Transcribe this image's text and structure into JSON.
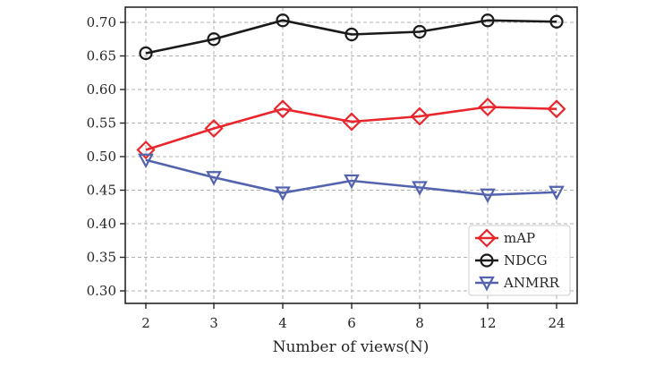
{
  "chart_data": {
    "type": "line",
    "title": "",
    "xlabel": "Number of views(N)",
    "ylabel": "",
    "categories": [
      "2",
      "3",
      "4",
      "6",
      "8",
      "12",
      "24"
    ],
    "ylim": [
      0.28,
      0.724
    ],
    "yticks": [
      "0.30",
      "0.35",
      "0.40",
      "0.45",
      "0.50",
      "0.55",
      "0.60",
      "0.65",
      "0.70"
    ],
    "grid": true,
    "legend_position": "lower right",
    "series": [
      {
        "name": "mAP",
        "color": "#e8262b",
        "marker": "diamond",
        "values": [
          0.51,
          0.542,
          0.571,
          0.552,
          0.56,
          0.574,
          0.571
        ]
      },
      {
        "name": "NDCG",
        "color": "#1a1a1a",
        "marker": "circle",
        "values": [
          0.654,
          0.675,
          0.703,
          0.682,
          0.686,
          0.703,
          0.701
        ]
      },
      {
        "name": "ANMRR",
        "color": "#5363ad",
        "marker": "triangle-down",
        "values": [
          0.495,
          0.469,
          0.446,
          0.464,
          0.454,
          0.443,
          0.447
        ]
      }
    ]
  }
}
